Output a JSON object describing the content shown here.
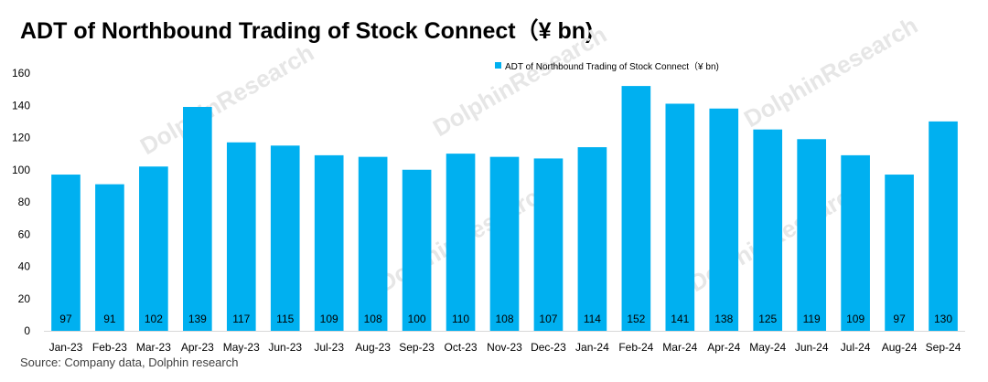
{
  "chart_data": {
    "type": "bar",
    "title": "ADT of Northbound Trading of Stock Connect（¥ bn)",
    "categories": [
      "Jan-23",
      "Feb-23",
      "Mar-23",
      "Apr-23",
      "May-23",
      "Jun-23",
      "Jul-23",
      "Aug-23",
      "Sep-23",
      "Oct-23",
      "Nov-23",
      "Dec-23",
      "Jan-24",
      "Feb-24",
      "Mar-24",
      "Apr-24",
      "May-24",
      "Jun-24",
      "Jul-24",
      "Aug-24",
      "Sep-24"
    ],
    "series": [
      {
        "name": "ADT of Northbound Trading of Stock Connect（¥ bn)",
        "values": [
          97,
          91,
          102,
          139,
          117,
          115,
          109,
          108,
          100,
          110,
          108,
          107,
          114,
          152,
          141,
          138,
          125,
          119,
          109,
          97,
          130
        ],
        "color": "#00B0F0"
      }
    ],
    "ylim": [
      0,
      160
    ],
    "yticks": [
      0,
      20,
      40,
      60,
      80,
      100,
      120,
      140,
      160
    ],
    "xlabel": "",
    "ylabel": "",
    "grid": false,
    "legend_position": "top-center",
    "data_labels": "inside-base"
  },
  "footer": {
    "source": "Source:   Company data, Dolphin research"
  },
  "watermark": {
    "text": "DolphinResearch"
  }
}
